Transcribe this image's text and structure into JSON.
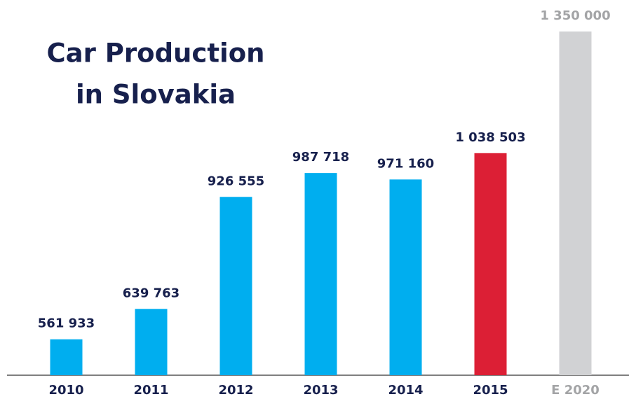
{
  "chart_data": {
    "type": "bar",
    "title_lines": [
      "Car Production",
      "in Slovakia"
    ],
    "categories": [
      "2010",
      "2011",
      "2012",
      "2013",
      "2014",
      "2015",
      "E 2020"
    ],
    "values": [
      561933,
      639763,
      926555,
      987718,
      971160,
      1038503,
      1350000
    ],
    "value_labels": [
      "561 933",
      "639 763",
      "926 555",
      "987 718",
      "971 160",
      "1 038 503",
      "1 350 000"
    ],
    "colors": [
      "#00aeef",
      "#00aeef",
      "#00aeef",
      "#00aeef",
      "#00aeef",
      "#dc1f35",
      "#d1d2d4"
    ],
    "label_colors": [
      "#17204d",
      "#17204d",
      "#17204d",
      "#17204d",
      "#17204d",
      "#17204d",
      "#a3a4a6"
    ],
    "ylim": [
      470000,
      1350000
    ]
  }
}
